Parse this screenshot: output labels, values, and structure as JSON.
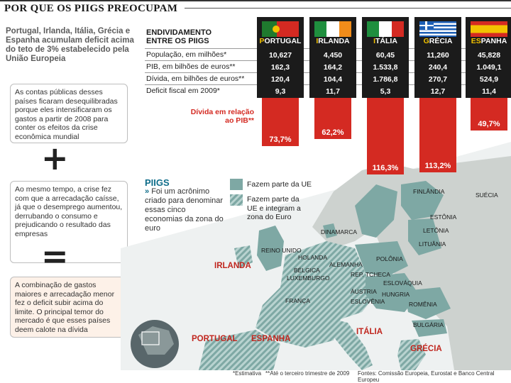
{
  "header": {
    "title": "POR QUE OS PIIGS PREOCUPAM"
  },
  "intro": "Portugal, Irlanda, Itália, Grécia e Espanha acumulam deficit acima do teto de 3% estabelecido pela União Europeia",
  "boxes": [
    "As contas públicas desses países ficaram desequilibradas porque eles intensificaram os gastos a partir de 2008 para conter os efeitos da crise econômica mundial",
    "Ao mesmo tempo, a crise fez com que a arrecadação caísse, já que o desemprego aumentou, derrubando o consumo e prejudicando o resultado das empresas",
    "A combinação de gastos maiores e arrecadação menor fez o deficit subir acima do limite. O principal temor do mercado é que esses países deem calote na dívida"
  ],
  "operators": {
    "plus": "+",
    "equals": "="
  },
  "table": {
    "title_line1": "ENDIVIDAMENTO",
    "title_line2": "ENTRE OS PIIGS",
    "rows": [
      "População, em milhões*",
      "PIB, em bilhões de euros**",
      "Dívida, em bilhões de euros**",
      "Deficit fiscal em 2009*"
    ],
    "countries": [
      {
        "initial": "P",
        "rest": "ORTUGAL",
        "values": [
          "10,627",
          "162,3",
          "120,4",
          "9,3"
        ],
        "debt_pct": "73,7%"
      },
      {
        "initial": "I",
        "rest": "RLANDA",
        "values": [
          "4,450",
          "164,2",
          "104,4",
          "11,7"
        ],
        "debt_pct": "62,2%"
      },
      {
        "initial": "I",
        "rest": "TÁLIA",
        "values": [
          "60,45",
          "1.533,8",
          "1.786,8",
          "5,3"
        ],
        "debt_pct": "116,3%"
      },
      {
        "initial": "G",
        "rest": "RÉCIA",
        "values": [
          "11,260",
          "240,4",
          "270,7",
          "12,7"
        ],
        "debt_pct": "113,2%"
      },
      {
        "initial": "ES",
        "rest": "PANHA",
        "values": [
          "45,828",
          "1.049,1",
          "524,9",
          "11,4"
        ],
        "debt_pct": "49,7%"
      }
    ],
    "debt_label_line1": "Dívida em relação",
    "debt_label_line2": "ao PIB**"
  },
  "chart_data": {
    "type": "bar",
    "categories": [
      "PORTUGAL",
      "IRLANDA",
      "ITÁLIA",
      "GRÉCIA",
      "ESPANHA"
    ],
    "values": [
      73.7,
      62.2,
      116.3,
      113.2,
      49.7
    ],
    "ylabel": "Dívida em relação ao PIB**"
  },
  "legend": {
    "title": "PIIGS",
    "text": "Foi um acrônimo criado para denominar essas cinco economias da zona do euro",
    "arrow": "»",
    "eu_label": "Fazem parte da UE",
    "euro_label": "Fazem parte da UE e integram a zona do Euro"
  },
  "map": {
    "labels_red": [
      "IRLANDA",
      "PORTUGAL",
      "ESPANHA",
      "ITÁLIA",
      "GRÉCIA"
    ],
    "labels": [
      "FINLÂNDIA",
      "SUÉCIA",
      "ESTÔNIA",
      "LETÔNIA",
      "LITUÂNIA",
      "DINAMARCA",
      "REINO UNIDO",
      "HOLANDA",
      "ALEMANHA",
      "POLÔNIA",
      "BÉLGICA",
      "LUXEMBURGO",
      "REP. TCHECA",
      "ESLOVÁQUIA",
      "ÁUSTRIA",
      "HUNGRIA",
      "ESLOVÊNIA",
      "FRANÇA",
      "ROMÊNIA",
      "BULGÁRIA"
    ],
    "colors": {
      "sea": "#eef1f1",
      "land": "#c9cfcc",
      "eu": "#7ea8a4",
      "euro_stripe": "#a8c9c6"
    }
  },
  "footer": {
    "note1": "*Estimativa",
    "note2": "**Até o terceiro trimestre de 2009",
    "sources": "Fontes: Comissão Europeia, Eurostat e Banco Central Europeu"
  }
}
